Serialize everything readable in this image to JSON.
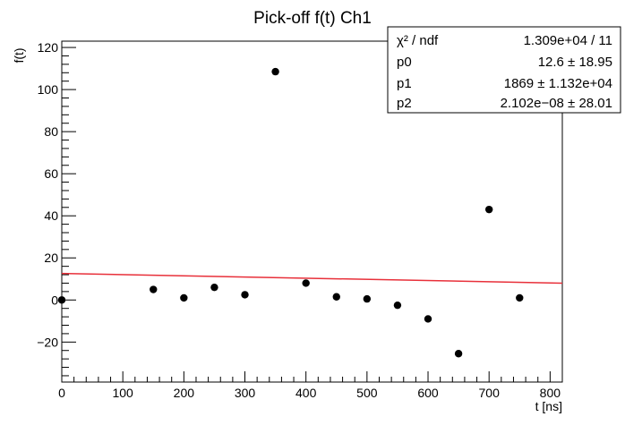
{
  "chart_data": {
    "type": "scatter",
    "title": "Pick-off f(t) Ch1",
    "xlabel": "t [ns]",
    "ylabel": "f(t)",
    "xlim": [
      0,
      820
    ],
    "ylim": [
      -39,
      123
    ],
    "xticks": [
      0,
      100,
      200,
      300,
      400,
      500,
      600,
      700,
      800
    ],
    "yticks": [
      -20,
      0,
      20,
      40,
      60,
      80,
      100,
      120
    ],
    "grid": false,
    "points": [
      {
        "x": 0,
        "y": 0
      },
      {
        "x": 150,
        "y": 5
      },
      {
        "x": 200,
        "y": 1
      },
      {
        "x": 250,
        "y": 6
      },
      {
        "x": 300,
        "y": 2.5
      },
      {
        "x": 350,
        "y": 108.5
      },
      {
        "x": 400,
        "y": 8
      },
      {
        "x": 450,
        "y": 1.5
      },
      {
        "x": 500,
        "y": 0.5
      },
      {
        "x": 550,
        "y": -2.5
      },
      {
        "x": 600,
        "y": -9
      },
      {
        "x": 650,
        "y": -25.5
      },
      {
        "x": 700,
        "y": 43
      },
      {
        "x": 750,
        "y": 1
      }
    ],
    "fit": {
      "color": "#e8303a",
      "x_range": [
        0,
        820
      ],
      "y_values": [
        12.6,
        8.0
      ]
    },
    "stats_box": {
      "placement": "top-right",
      "rows": [
        {
          "label": "χ² / ndf",
          "value": "1.309e+04 / 11"
        },
        {
          "label": "p0",
          "value": "12.6 ± 18.95"
        },
        {
          "label": "p1",
          "value": "1869 ± 1.132e+04"
        },
        {
          "label": "p2",
          "value": "2.102e−08 ± 28.01"
        }
      ]
    },
    "colors": {
      "points": "#000000",
      "fit": "#e8303a",
      "axes": "#000000"
    }
  }
}
